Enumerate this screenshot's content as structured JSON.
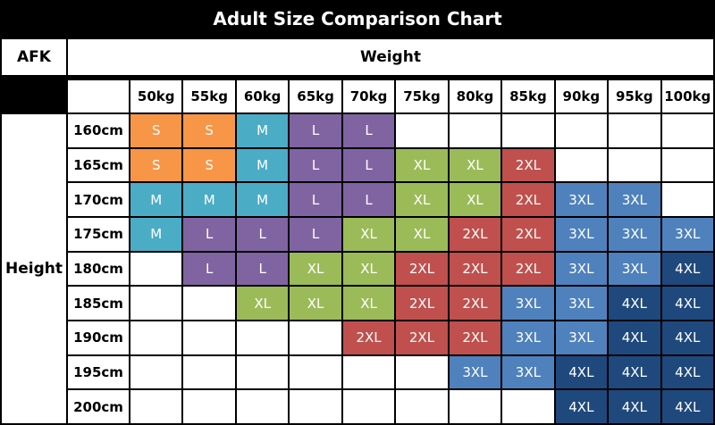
{
  "title": "Adult Size Comparison Chart",
  "corner_label": "AFK",
  "weight_label": "Weight",
  "height_label": "Height",
  "size_colors": {
    "S": "#F79646",
    "M": "#4BACC6",
    "L": "#8064A2",
    "XL": "#9BBB59",
    "2XL": "#C0504D",
    "3XL": "#4F81BD",
    "4XL": "#1F497D"
  },
  "empty_color": "#FFFFFF",
  "chart_data": {
    "type": "table",
    "title": "Adult Size Comparison Chart",
    "x_axis_label": "Weight",
    "y_axis_label": "Height",
    "corner_label": "AFK",
    "columns": [
      "50kg",
      "55kg",
      "60kg",
      "65kg",
      "70kg",
      "75kg",
      "80kg",
      "85kg",
      "90kg",
      "95kg",
      "100kg"
    ],
    "rows": [
      {
        "label": "160cm",
        "cells": [
          "S",
          "S",
          "M",
          "L",
          "L",
          "",
          "",
          "",
          "",
          "",
          ""
        ]
      },
      {
        "label": "165cm",
        "cells": [
          "S",
          "S",
          "M",
          "L",
          "L",
          "XL",
          "XL",
          "2XL",
          "",
          "",
          ""
        ]
      },
      {
        "label": "170cm",
        "cells": [
          "M",
          "M",
          "M",
          "L",
          "L",
          "XL",
          "XL",
          "2XL",
          "3XL",
          "3XL",
          ""
        ]
      },
      {
        "label": "175cm",
        "cells": [
          "M",
          "L",
          "L",
          "L",
          "XL",
          "XL",
          "2XL",
          "2XL",
          "3XL",
          "3XL",
          "3XL"
        ]
      },
      {
        "label": "180cm",
        "cells": [
          "",
          "L",
          "L",
          "XL",
          "XL",
          "2XL",
          "2XL",
          "2XL",
          "3XL",
          "3XL",
          "4XL"
        ]
      },
      {
        "label": "185cm",
        "cells": [
          "",
          "",
          "XL",
          "XL",
          "XL",
          "2XL",
          "2XL",
          "3XL",
          "3XL",
          "4XL",
          "4XL"
        ]
      },
      {
        "label": "190cm",
        "cells": [
          "",
          "",
          "",
          "",
          "2XL",
          "2XL",
          "2XL",
          "3XL",
          "3XL",
          "4XL",
          "4XL"
        ]
      },
      {
        "label": "195cm",
        "cells": [
          "",
          "",
          "",
          "",
          "",
          "",
          "3XL",
          "3XL",
          "4XL",
          "4XL",
          "4XL"
        ]
      },
      {
        "label": "200cm",
        "cells": [
          "",
          "",
          "",
          "",
          "",
          "",
          "",
          "",
          "4XL",
          "4XL",
          "4XL"
        ]
      }
    ]
  }
}
